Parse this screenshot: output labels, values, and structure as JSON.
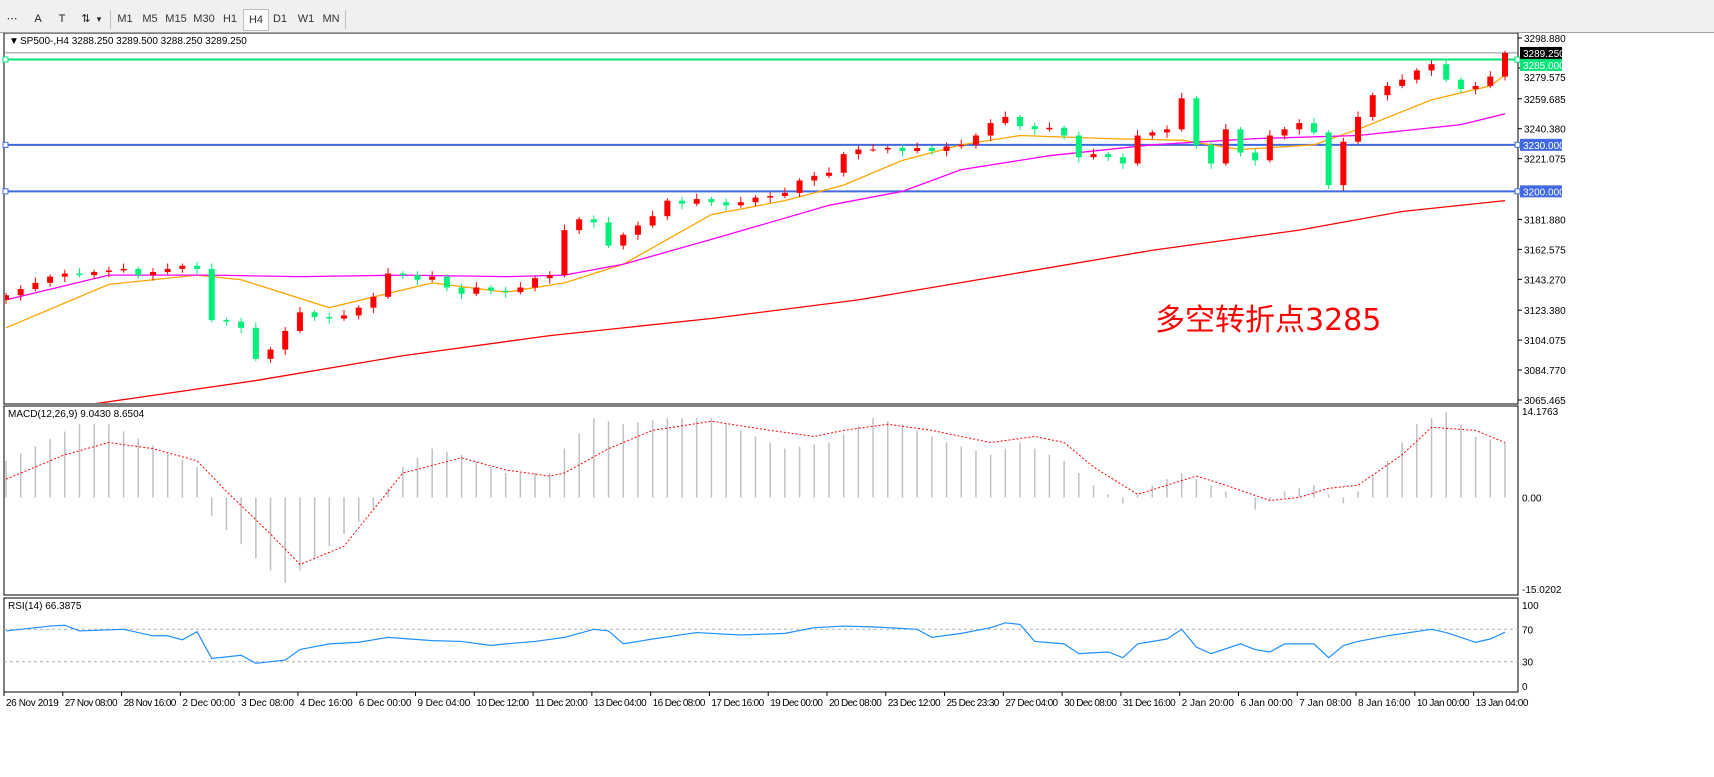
{
  "toolbar": {
    "tools": [
      {
        "name": "grid-icon",
        "glyph": "⋯"
      },
      {
        "name": "text-tool-icon",
        "glyph": "A"
      },
      {
        "name": "text-label-tool-icon",
        "glyph": "T"
      },
      {
        "name": "arrows-tool-icon",
        "glyph": "⇅"
      }
    ],
    "dropdown_glyph": "▾",
    "timeframes": [
      "M1",
      "M5",
      "M15",
      "M30",
      "H1",
      "H4",
      "D1",
      "W1",
      "MN"
    ],
    "selected_timeframe": "H4"
  },
  "chart_data": {
    "type": "candlestick",
    "title": "SP500-,H4  3288.250 3289.500 3288.250 3289.250",
    "colors": {
      "up": "#ff0000",
      "down": "#00f07a",
      "ma_fast": "#ffa500",
      "ma_mid": "#ff00ff",
      "ma_slow": "#ff0000",
      "hline_green": "#00e676",
      "hline_blue": "#4169e1",
      "bid_line": "#8a96a0",
      "macd_hist": "#c0c0c0",
      "macd_signal": "#ff0000",
      "rsi": "#1e90ff",
      "annotation": "#ff0000"
    },
    "price_axis": {
      "ylim": [
        3065.465,
        3298.88
      ],
      "ticks": [
        "3298.880",
        "3279.575",
        "3259.685",
        "3240.380",
        "3221.075",
        "3181.880",
        "3162.575",
        "3143.270",
        "3123.380",
        "3104.075",
        "3084.770",
        "3065.465"
      ]
    },
    "time_labels": [
      "26 Nov 2019",
      "27 Nov 08:00",
      "28 Nov 16:00",
      "2 Dec 00:00",
      "3 Dec 08:00",
      "4 Dec 16:00",
      "6 Dec 00:00",
      "9 Dec 04:00",
      "10 Dec 12:00",
      "11 Dec 20:00",
      "13 Dec 04:00",
      "16 Dec 08:00",
      "17 Dec 16:00",
      "19 Dec 00:00",
      "20 Dec 08:00",
      "23 Dec 12:00",
      "25 Dec 23:30",
      "27 Dec 04:00",
      "30 Dec 08:00",
      "31 Dec 16:00",
      "2 Jan 20:00",
      "6 Jan 00:00",
      "7 Jan 08:00",
      "8 Jan 16:00",
      "10 Jan 00:00",
      "13 Jan 04:00"
    ],
    "closes": [
      3133,
      3137,
      3141,
      3145,
      3147,
      3146,
      3148,
      3149,
      3150,
      3146,
      3148,
      3150,
      3152,
      3150,
      3117,
      3116,
      3112,
      3092,
      3098,
      3110,
      3122,
      3119,
      3118,
      3120,
      3125,
      3132,
      3147,
      3146,
      3143,
      3145,
      3138,
      3134,
      3138,
      3136,
      3135,
      3138,
      3144,
      3146,
      3175,
      3182,
      3180,
      3165,
      3172,
      3178,
      3184,
      3194,
      3192,
      3195,
      3193,
      3191,
      3193,
      3196,
      3197,
      3199,
      3207,
      3210,
      3212,
      3224,
      3227,
      3227,
      3228,
      3226,
      3228,
      3226,
      3229,
      3230,
      3236,
      3244,
      3248,
      3242,
      3240,
      3241,
      3236,
      3222,
      3224,
      3222,
      3218,
      3236,
      3238,
      3240,
      3260,
      3230,
      3218,
      3240,
      3225,
      3220,
      3236,
      3240,
      3244,
      3238,
      3204,
      3232,
      3248,
      3262,
      3268,
      3272,
      3278,
      3282,
      3272,
      3266,
      3268,
      3274,
      3289.25
    ],
    "moving_averages": [
      {
        "color_key": "ma_fast",
        "points": [
          [
            0,
            3112
          ],
          [
            7,
            3140
          ],
          [
            13,
            3146
          ],
          [
            16,
            3143
          ],
          [
            22,
            3125
          ],
          [
            29,
            3141
          ],
          [
            34,
            3135
          ],
          [
            38,
            3141
          ],
          [
            42,
            3153
          ],
          [
            48,
            3185
          ],
          [
            53,
            3194
          ],
          [
            57,
            3204
          ],
          [
            61,
            3220
          ],
          [
            65,
            3230
          ],
          [
            69,
            3236
          ],
          [
            75,
            3234
          ],
          [
            80,
            3233
          ],
          [
            84,
            3227
          ],
          [
            89,
            3230
          ],
          [
            92,
            3240
          ],
          [
            97,
            3259
          ],
          [
            101,
            3268
          ],
          [
            102,
            3275
          ]
        ]
      },
      {
        "color_key": "ma_mid",
        "points": [
          [
            0,
            3130
          ],
          [
            7,
            3146
          ],
          [
            14,
            3146
          ],
          [
            20,
            3145
          ],
          [
            27,
            3146
          ],
          [
            34,
            3145
          ],
          [
            38,
            3146
          ],
          [
            42,
            3153
          ],
          [
            48,
            3169
          ],
          [
            56,
            3191
          ],
          [
            61,
            3200
          ],
          [
            65,
            3214
          ],
          [
            71,
            3223
          ],
          [
            78,
            3230
          ],
          [
            85,
            3234
          ],
          [
            92,
            3236
          ],
          [
            99,
            3243
          ],
          [
            102,
            3250
          ]
        ]
      },
      {
        "color_key": "ma_slow",
        "points": [
          [
            6,
            3063
          ],
          [
            17,
            3078
          ],
          [
            27,
            3094
          ],
          [
            37,
            3107
          ],
          [
            48,
            3118
          ],
          [
            58,
            3130
          ],
          [
            68,
            3146
          ],
          [
            78,
            3162
          ],
          [
            88,
            3175
          ],
          [
            95,
            3187
          ],
          [
            102,
            3194
          ]
        ]
      }
    ],
    "horizontal_lines": [
      {
        "price": 3289.25,
        "label": "3289.250",
        "color_key": "bid_line",
        "label_bg": "#000000"
      },
      {
        "price": 3285,
        "label": "3285.000",
        "color_key": "hline_green",
        "label_bg": "#00e676"
      },
      {
        "price": 3230,
        "label": "3230.000",
        "color_key": "hline_blue",
        "label_bg": "#4169e1"
      },
      {
        "price": 3200,
        "label": "3200.000",
        "color_key": "hline_blue",
        "label_bg": "#4169e1"
      }
    ],
    "annotation": "多空转折点3285",
    "macd": {
      "label": "MACD(12,26,9) 9.0430 8.6504",
      "ylim": [
        -15.0202,
        14.1763
      ],
      "ticks": [
        "14.1763",
        "0.00",
        "-15.0202"
      ],
      "histogram": [
        [
          0,
          6
        ],
        [
          5,
          12
        ],
        [
          7,
          12
        ],
        [
          13,
          5
        ],
        [
          14,
          -3
        ],
        [
          17,
          -10
        ],
        [
          19,
          -14
        ],
        [
          22,
          -8
        ],
        [
          25,
          -2
        ],
        [
          27,
          5
        ],
        [
          29,
          8
        ],
        [
          31,
          7
        ],
        [
          34,
          4
        ],
        [
          37,
          4
        ],
        [
          38,
          8
        ],
        [
          40,
          13
        ],
        [
          42,
          12
        ],
        [
          45,
          13
        ],
        [
          48,
          13
        ],
        [
          50,
          11
        ],
        [
          53,
          8
        ],
        [
          56,
          9
        ],
        [
          59,
          13
        ],
        [
          61,
          12
        ],
        [
          64,
          9
        ],
        [
          67,
          7
        ],
        [
          69,
          9
        ],
        [
          72,
          6
        ],
        [
          74,
          2
        ],
        [
          76,
          -1
        ],
        [
          78,
          2
        ],
        [
          80,
          4
        ],
        [
          82,
          2
        ],
        [
          84,
          0
        ],
        [
          85,
          -2
        ],
        [
          87,
          1
        ],
        [
          89,
          2
        ],
        [
          91,
          -1
        ],
        [
          92,
          1
        ],
        [
          94,
          6
        ],
        [
          96,
          12
        ],
        [
          98,
          14
        ],
        [
          100,
          10
        ],
        [
          102,
          9
        ]
      ],
      "signal": [
        [
          0,
          3
        ],
        [
          4,
          7
        ],
        [
          7,
          9
        ],
        [
          10,
          8
        ],
        [
          13,
          6
        ],
        [
          15,
          1
        ],
        [
          18,
          -6
        ],
        [
          20,
          -11
        ],
        [
          23,
          -8
        ],
        [
          25,
          -2
        ],
        [
          27,
          4
        ],
        [
          31,
          6.5
        ],
        [
          34,
          4.5
        ],
        [
          37,
          3.5
        ],
        [
          38,
          4
        ],
        [
          41,
          8
        ],
        [
          44,
          11
        ],
        [
          48,
          12.5
        ],
        [
          52,
          11
        ],
        [
          55,
          10
        ],
        [
          57,
          11
        ],
        [
          60,
          12
        ],
        [
          63,
          11
        ],
        [
          67,
          9
        ],
        [
          70,
          10
        ],
        [
          72,
          9
        ],
        [
          74,
          5
        ],
        [
          77,
          0.5
        ],
        [
          79,
          2
        ],
        [
          81,
          3.5
        ],
        [
          83,
          2
        ],
        [
          86,
          -0.5
        ],
        [
          88,
          0
        ],
        [
          90,
          1.5
        ],
        [
          92,
          2
        ],
        [
          95,
          7
        ],
        [
          97,
          11.5
        ],
        [
          100,
          11
        ],
        [
          102,
          9
        ]
      ]
    },
    "rsi": {
      "label": "RSI(14) 66.3875",
      "ylim": [
        0,
        100
      ],
      "ticks": [
        "100",
        "70",
        "30",
        "0"
      ],
      "levels": [
        70,
        30
      ],
      "values": [
        [
          0,
          68
        ],
        [
          3,
          74
        ],
        [
          4,
          75
        ],
        [
          5,
          68
        ],
        [
          8,
          70
        ],
        [
          10,
          62
        ],
        [
          11,
          62
        ],
        [
          12,
          57
        ],
        [
          13,
          67
        ],
        [
          14,
          34
        ],
        [
          16,
          38
        ],
        [
          17,
          28
        ],
        [
          19,
          32
        ],
        [
          20,
          45
        ],
        [
          22,
          52
        ],
        [
          24,
          54
        ],
        [
          26,
          60
        ],
        [
          29,
          56
        ],
        [
          31,
          55
        ],
        [
          33,
          50
        ],
        [
          34,
          52
        ],
        [
          36,
          55
        ],
        [
          38,
          60
        ],
        [
          40,
          70
        ],
        [
          41,
          68
        ],
        [
          42,
          52
        ],
        [
          44,
          58
        ],
        [
          47,
          66
        ],
        [
          50,
          63
        ],
        [
          53,
          65
        ],
        [
          55,
          72
        ],
        [
          57,
          74
        ],
        [
          59,
          73
        ],
        [
          62,
          70
        ],
        [
          63,
          60
        ],
        [
          65,
          65
        ],
        [
          67,
          72
        ],
        [
          68,
          78
        ],
        [
          69,
          76
        ],
        [
          70,
          55
        ],
        [
          72,
          52
        ],
        [
          73,
          40
        ],
        [
          75,
          42
        ],
        [
          76,
          35
        ],
        [
          77,
          52
        ],
        [
          79,
          58
        ],
        [
          80,
          70
        ],
        [
          81,
          48
        ],
        [
          82,
          40
        ],
        [
          84,
          52
        ],
        [
          85,
          45
        ],
        [
          86,
          42
        ],
        [
          87,
          52
        ],
        [
          89,
          52
        ],
        [
          90,
          35
        ],
        [
          91,
          50
        ],
        [
          92,
          55
        ],
        [
          94,
          62
        ],
        [
          97,
          70
        ],
        [
          98,
          66
        ],
        [
          100,
          54
        ],
        [
          101,
          58
        ],
        [
          102,
          66.4
        ]
      ]
    }
  }
}
